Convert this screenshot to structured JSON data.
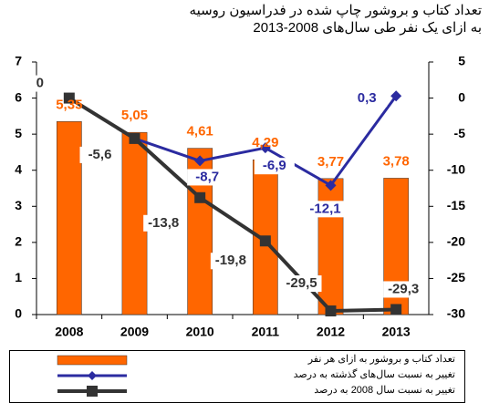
{
  "chart_data": {
    "type": "bar-line",
    "title": [
      "تعداد کتاب و بروشور چاپ شده در فدراسیون روسیه",
      "به ازای یک نفر طی سال‌های 2008-2013"
    ],
    "categories": [
      "2008",
      "2009",
      "2010",
      "2011",
      "2012",
      "2013"
    ],
    "series": [
      {
        "name": "تعداد کتاب و بروشور به ازای هر نفر",
        "type": "bar",
        "color": "#ff6600",
        "values": [
          5.35,
          5.05,
          4.61,
          4.29,
          3.77,
          3.78
        ],
        "value_labels": [
          "5,35",
          "5,05",
          "4,61",
          "4,29",
          "3,77",
          "3,78"
        ]
      },
      {
        "name": "تغییر به نسبت سال‌های گذشته به درصد",
        "type": "line",
        "axis": "y2",
        "color": "#2b2ba0",
        "values": [
          0,
          -5.6,
          -8.7,
          -6.9,
          -12.1,
          0.3
        ],
        "value_labels": [
          null,
          null,
          "-8,7",
          "-6,9",
          "-12,1",
          "0,3"
        ]
      },
      {
        "name": "تغییر به نسبت سال 2008 به درصد",
        "type": "line",
        "axis": "y2",
        "color": "#333333",
        "values": [
          0,
          -5.6,
          -13.8,
          -19.8,
          -29.5,
          -29.3
        ],
        "value_labels": [
          "0",
          "-5,6",
          "-13,8",
          "-19,8",
          "-29,5",
          "-29,3"
        ]
      }
    ],
    "ylim": [
      0,
      7
    ],
    "yticks": [
      0,
      1,
      2,
      3,
      4,
      5,
      6,
      7
    ],
    "y2lim": [
      -30,
      5
    ],
    "y2ticks": [
      5,
      0,
      -5,
      -10,
      -15,
      -20,
      -25,
      -30
    ]
  }
}
